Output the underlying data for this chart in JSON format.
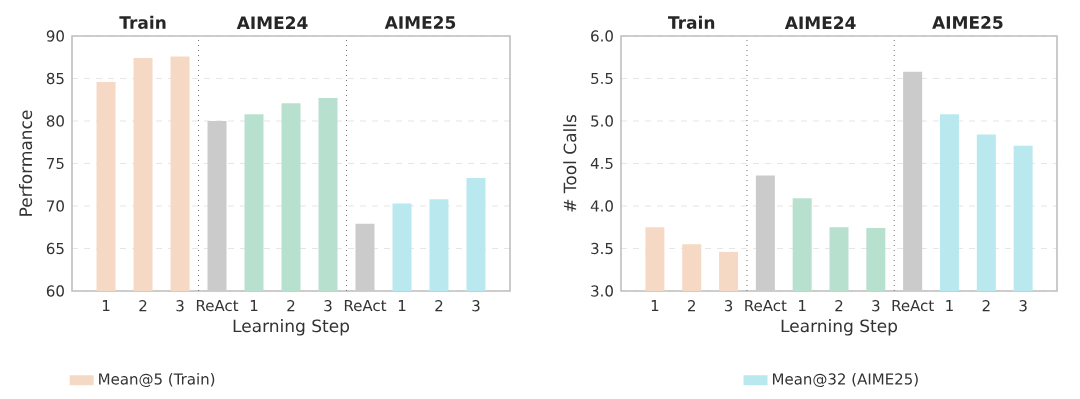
{
  "chart_data": [
    {
      "type": "bar",
      "xlabel": "Learning Step",
      "ylabel": "Performance",
      "categories": [
        "1",
        "2",
        "3",
        "ReAct",
        "1",
        "2",
        "3",
        "ReAct",
        "1",
        "2",
        "3"
      ],
      "series": [
        {
          "name": "Mean@5 (Train)",
          "color": "#f6d9c4",
          "values": [
            84.6,
            87.4,
            87.6,
            null,
            null,
            null,
            null,
            null,
            null,
            null,
            null
          ]
        },
        {
          "color": "#cbcbcb",
          "values": [
            null,
            null,
            null,
            80.0,
            null,
            null,
            null,
            67.9,
            null,
            null,
            null
          ]
        },
        {
          "color": "#b8e0cf",
          "values": [
            null,
            null,
            null,
            null,
            80.8,
            82.1,
            82.7,
            null,
            null,
            null,
            null
          ]
        },
        {
          "name": "Mean@32 (AIME25)",
          "color": "#b9e9ee",
          "values": [
            null,
            null,
            null,
            null,
            null,
            null,
            null,
            null,
            70.3,
            70.8,
            73.3
          ]
        }
      ],
      "ylim": [
        60,
        90
      ],
      "yticks": [
        60,
        65,
        70,
        75,
        80,
        85,
        90
      ],
      "grid": "y",
      "legend": "bottom",
      "annotations": [
        "Train",
        "AIME24",
        "AIME25"
      ]
    },
    {
      "type": "bar",
      "xlabel": "Learning Step",
      "ylabel": "# Tool Calls",
      "categories": [
        "1",
        "2",
        "3",
        "ReAct",
        "1",
        "2",
        "3",
        "ReAct",
        "1",
        "2",
        "3"
      ],
      "series": [
        {
          "color": "#f6d9c4",
          "values": [
            3.75,
            3.55,
            3.46,
            null,
            null,
            null,
            null,
            null,
            null,
            null,
            null
          ]
        },
        {
          "color": "#cbcbcb",
          "values": [
            null,
            null,
            null,
            4.36,
            null,
            null,
            null,
            5.58,
            null,
            null,
            null
          ]
        },
        {
          "color": "#b8e0cf",
          "values": [
            null,
            null,
            null,
            null,
            4.09,
            3.75,
            3.74,
            null,
            null,
            null,
            null
          ]
        },
        {
          "color": "#b9e9ee",
          "values": [
            null,
            null,
            null,
            null,
            null,
            null,
            null,
            null,
            5.08,
            4.84,
            4.71
          ]
        }
      ],
      "ylim": [
        3.0,
        6.0
      ],
      "yticks": [
        {
          "value": 3.0,
          "label": "3.0"
        },
        {
          "value": 3.5,
          "label": "3.5"
        },
        {
          "value": 4.0,
          "label": "4.0"
        },
        {
          "value": 4.5,
          "label": "4.5"
        },
        {
          "value": 5.0,
          "label": "5.0"
        },
        {
          "value": 5.5,
          "label": "5.5"
        },
        {
          "value": 6.0,
          "label": "6.0"
        }
      ],
      "grid": "y",
      "annotations": [
        "Train",
        "AIME24",
        "AIME25"
      ]
    }
  ]
}
